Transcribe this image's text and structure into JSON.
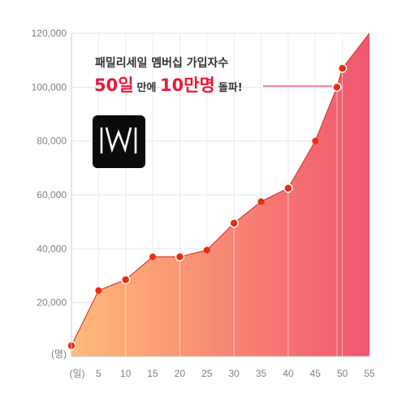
{
  "chart_data": {
    "type": "area",
    "title": "패밀리세일 멤버십 가입자수",
    "x_unit_label": "(일)",
    "y_unit_label": "(명)",
    "xlim": [
      0,
      55
    ],
    "ylim": [
      0,
      120000
    ],
    "x_ticks": [
      5,
      10,
      15,
      20,
      25,
      30,
      35,
      40,
      45,
      50,
      55
    ],
    "y_ticks": [
      20000,
      40000,
      60000,
      80000,
      100000,
      120000
    ],
    "y_tick_labels": [
      "20,000",
      "40,000",
      "60,000",
      "80,000",
      "100,000",
      "120,000"
    ],
    "x_tick_labels": [
      "5",
      "10",
      "15",
      "20",
      "25",
      "30",
      "35",
      "40",
      "45",
      "50",
      "55"
    ],
    "grid": true,
    "points": [
      {
        "x": 0,
        "y": 4000
      },
      {
        "x": 5,
        "y": 24500
      },
      {
        "x": 10,
        "y": 28500
      },
      {
        "x": 15,
        "y": 37000
      },
      {
        "x": 20,
        "y": 37000
      },
      {
        "x": 25,
        "y": 39500
      },
      {
        "x": 30,
        "y": 49500
      },
      {
        "x": 35,
        "y": 57500
      },
      {
        "x": 40,
        "y": 62500
      },
      {
        "x": 45,
        "y": 80000
      },
      {
        "x": 49,
        "y": 100000
      },
      {
        "x": 50,
        "y": 107000
      },
      {
        "x": 55,
        "y": 120000
      }
    ],
    "highlighted_x": [
      0,
      10,
      20,
      30,
      40,
      49,
      50
    ],
    "annotation": {
      "big1": "50일",
      "small1": "만에 ",
      "big2": "10만명",
      "small2": "돌파!"
    },
    "colors": {
      "fill_start": "#ffbb78",
      "fill_end": "#f0566f",
      "line": "#d93a3a",
      "marker": "#ee2a0d",
      "accent": "#e8173a"
    }
  },
  "logo": {
    "name": "wm-logo-icon"
  }
}
